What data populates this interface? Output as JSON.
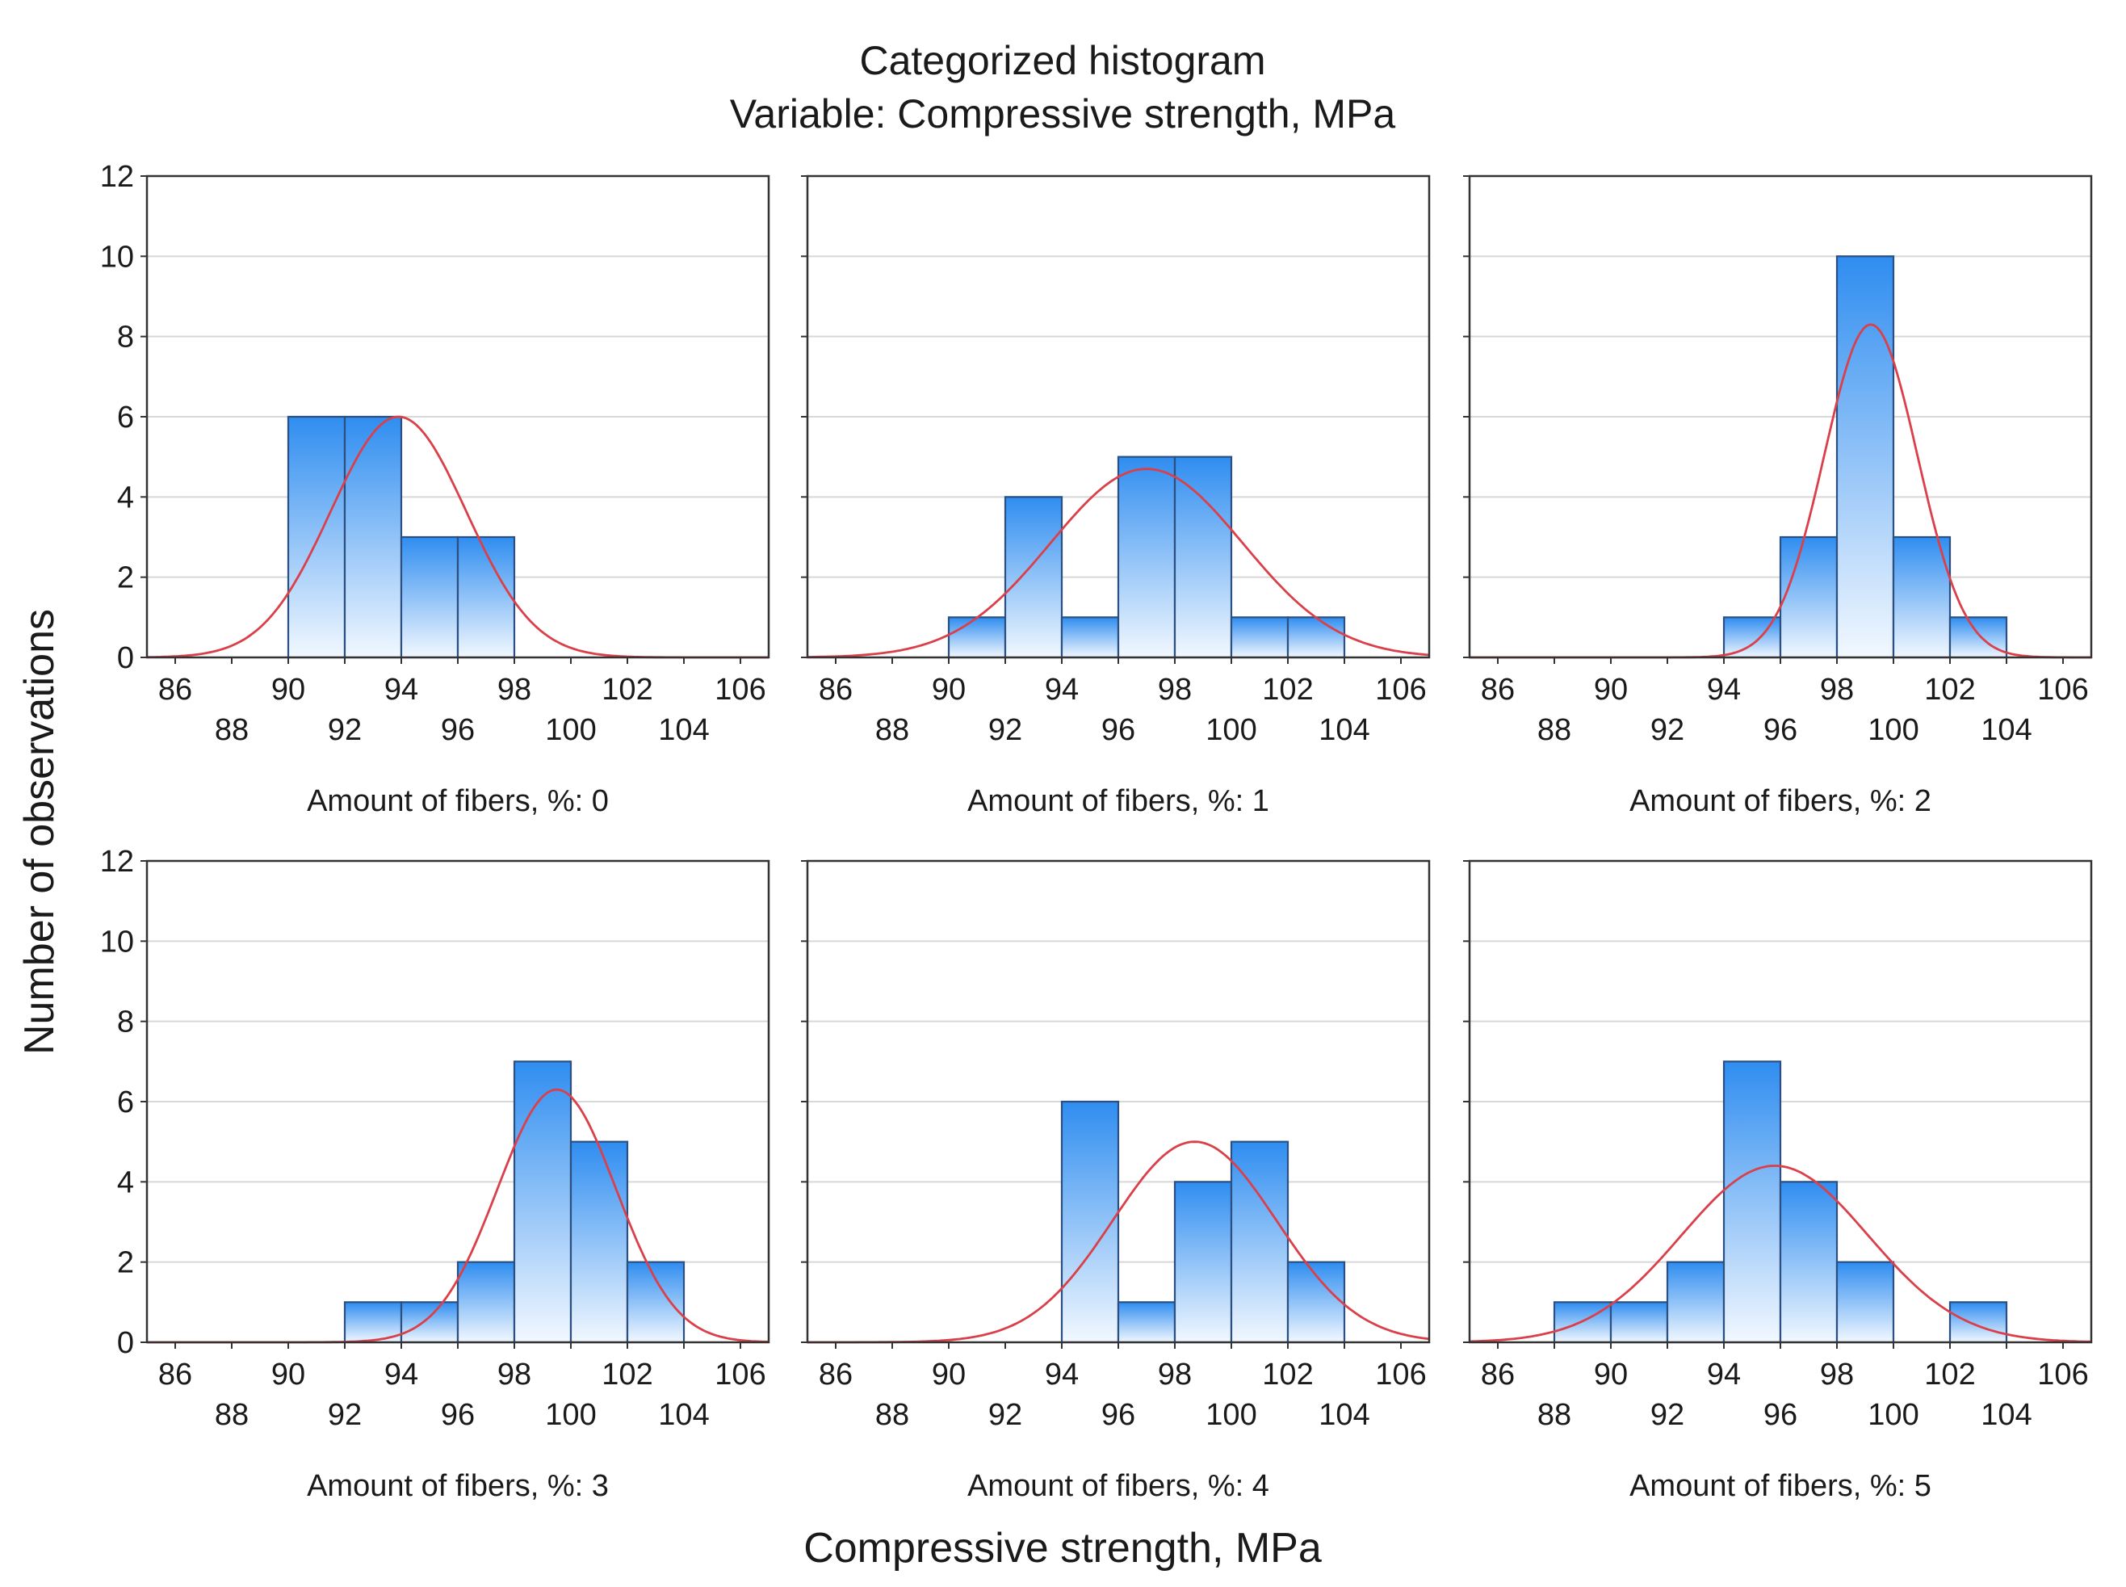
{
  "chart_data": {
    "type": "bar",
    "title": "Categorized histogram",
    "subtitle": "Variable: Compressive strength, MPa",
    "xlabel": "Compressive strength, MPa",
    "ylabel": "Number of observations",
    "xlim": [
      85,
      107
    ],
    "ylim": [
      0,
      12
    ],
    "x_ticks_upper": [
      "86",
      "90",
      "94",
      "98",
      "102",
      "106"
    ],
    "x_ticks_lower": [
      "88",
      "92",
      "96",
      "100",
      "104"
    ],
    "y_ticks": [
      "0",
      "2",
      "4",
      "6",
      "8",
      "10",
      "12"
    ],
    "bar_color": "#2f8df0",
    "curve_color": "#d9404a",
    "grid": true,
    "panels": [
      {
        "label": "Amount of fibers, %: 0",
        "bins": [
          {
            "x0": 90,
            "x1": 92,
            "count": 6
          },
          {
            "x0": 92,
            "x1": 94,
            "count": 6
          },
          {
            "x0": 94,
            "x1": 96,
            "count": 3
          },
          {
            "x0": 96,
            "x1": 98,
            "count": 3
          }
        ],
        "normal_fit": {
          "mean": 93.9,
          "sd": 2.4,
          "peak": 6.0
        }
      },
      {
        "label": "Amount of fibers, %: 1",
        "bins": [
          {
            "x0": 90,
            "x1": 92,
            "count": 1
          },
          {
            "x0": 92,
            "x1": 94,
            "count": 4
          },
          {
            "x0": 94,
            "x1": 96,
            "count": 1
          },
          {
            "x0": 96,
            "x1": 98,
            "count": 5
          },
          {
            "x0": 98,
            "x1": 100,
            "count": 5
          },
          {
            "x0": 100,
            "x1": 102,
            "count": 1
          },
          {
            "x0": 102,
            "x1": 104,
            "count": 1
          }
        ],
        "normal_fit": {
          "mean": 97.0,
          "sd": 3.4,
          "peak": 4.7
        }
      },
      {
        "label": "Amount of fibers, %: 2",
        "bins": [
          {
            "x0": 94,
            "x1": 96,
            "count": 1
          },
          {
            "x0": 96,
            "x1": 98,
            "count": 3
          },
          {
            "x0": 98,
            "x1": 100,
            "count": 10
          },
          {
            "x0": 100,
            "x1": 102,
            "count": 3
          },
          {
            "x0": 102,
            "x1": 104,
            "count": 1
          }
        ],
        "normal_fit": {
          "mean": 99.2,
          "sd": 1.65,
          "peak": 8.3
        }
      },
      {
        "label": "Amount of fibers, %: 3",
        "bins": [
          {
            "x0": 92,
            "x1": 94,
            "count": 1
          },
          {
            "x0": 94,
            "x1": 96,
            "count": 1
          },
          {
            "x0": 96,
            "x1": 98,
            "count": 2
          },
          {
            "x0": 98,
            "x1": 100,
            "count": 7
          },
          {
            "x0": 100,
            "x1": 102,
            "count": 5
          },
          {
            "x0": 102,
            "x1": 104,
            "count": 2
          }
        ],
        "normal_fit": {
          "mean": 99.5,
          "sd": 2.1,
          "peak": 6.3
        }
      },
      {
        "label": "Amount of fibers, %: 4",
        "bins": [
          {
            "x0": 94,
            "x1": 96,
            "count": 6
          },
          {
            "x0": 96,
            "x1": 98,
            "count": 1
          },
          {
            "x0": 98,
            "x1": 100,
            "count": 4
          },
          {
            "x0": 100,
            "x1": 102,
            "count": 5
          },
          {
            "x0": 102,
            "x1": 104,
            "count": 2
          }
        ],
        "normal_fit": {
          "mean": 98.7,
          "sd": 2.9,
          "peak": 5.0
        }
      },
      {
        "label": "Amount of fibers, %: 5",
        "bins": [
          {
            "x0": 88,
            "x1": 90,
            "count": 1
          },
          {
            "x0": 90,
            "x1": 92,
            "count": 1
          },
          {
            "x0": 92,
            "x1": 94,
            "count": 2
          },
          {
            "x0": 94,
            "x1": 96,
            "count": 7
          },
          {
            "x0": 96,
            "x1": 98,
            "count": 4
          },
          {
            "x0": 98,
            "x1": 100,
            "count": 2
          },
          {
            "x0": 102,
            "x1": 104,
            "count": 1
          }
        ],
        "normal_fit": {
          "mean": 95.8,
          "sd": 3.3,
          "peak": 4.4
        }
      }
    ]
  }
}
